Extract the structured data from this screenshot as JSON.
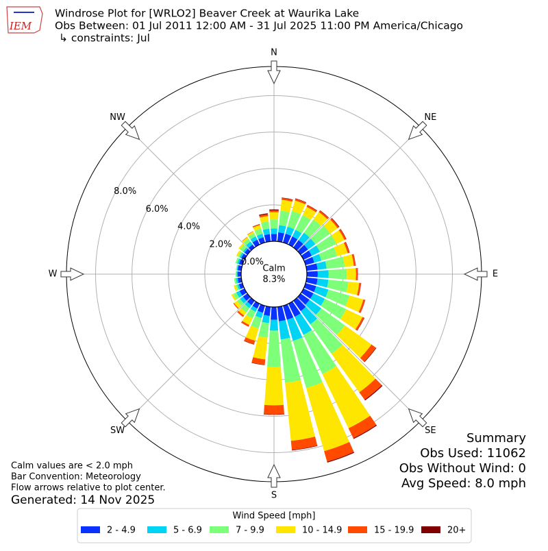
{
  "chart_data": {
    "type": "windrose",
    "title_lines": [
      "Windrose Plot for [WRLO2] Beaver Creek at Waurika Lake",
      "Obs Between: 01 Jul 2011 12:00 AM - 31 Jul 2025 11:00 PM America/Chicago",
      "↳ constraints: Jul"
    ],
    "logo_text": "IEM",
    "x": [
      0,
      10,
      20,
      30,
      40,
      50,
      60,
      70,
      80,
      90,
      100,
      110,
      120,
      130,
      140,
      150,
      160,
      170,
      180,
      190,
      200,
      210,
      220,
      230,
      240,
      250,
      260,
      270,
      280,
      290,
      300,
      310,
      320,
      330,
      340,
      350
    ],
    "series": [
      {
        "name": "2 - 4.9",
        "color": "#0a32ff",
        "values": [
          0.4,
          0.5,
          0.5,
          0.5,
          0.5,
          0.5,
          0.5,
          0.5,
          0.6,
          0.6,
          0.6,
          0.6,
          0.6,
          0.6,
          0.7,
          0.8,
          0.8,
          0.8,
          0.7,
          0.5,
          0.4,
          0.3,
          0.3,
          0.3,
          0.3,
          0.2,
          0.2,
          0.2,
          0.2,
          0.2,
          0.2,
          0.2,
          0.2,
          0.3,
          0.3,
          0.4
        ]
      },
      {
        "name": "5 - 6.9",
        "color": "#00d4f5",
        "values": [
          0.3,
          0.4,
          0.4,
          0.4,
          0.5,
          0.5,
          0.5,
          0.4,
          0.5,
          0.6,
          0.6,
          0.7,
          0.7,
          0.8,
          0.9,
          1.1,
          1.2,
          1.0,
          0.6,
          0.4,
          0.3,
          0.2,
          0.2,
          0.2,
          0.2,
          0.1,
          0.1,
          0.05,
          0.05,
          0.1,
          0.1,
          0.1,
          0.2,
          0.2,
          0.2,
          0.3
        ]
      },
      {
        "name": "7 - 9.9",
        "color": "#7dff7a",
        "values": [
          0.5,
          0.8,
          0.9,
          0.9,
          0.9,
          1.0,
          1.0,
          0.9,
          1.0,
          1.0,
          1.1,
          1.2,
          1.3,
          1.6,
          2.0,
          2.4,
          2.7,
          2.4,
          2.0,
          0.8,
          0.6,
          0.4,
          0.3,
          0.2,
          0.2,
          0.1,
          0.1,
          0.05,
          0.05,
          0.1,
          0.1,
          0.2,
          0.2,
          0.2,
          0.3,
          0.4
        ]
      },
      {
        "name": "10 - 14.9",
        "color": "#ffe600",
        "values": [
          0.4,
          0.6,
          0.6,
          0.5,
          0.5,
          0.5,
          0.5,
          0.6,
          0.5,
          0.5,
          0.6,
          0.8,
          1.0,
          1.8,
          2.6,
          3.3,
          3.6,
          3.2,
          2.1,
          1.2,
          0.7,
          0.4,
          0.2,
          0.2,
          0.1,
          0.1,
          0,
          0,
          0,
          0,
          0.1,
          0.1,
          0.1,
          0.1,
          0.2,
          0.3
        ]
      },
      {
        "name": "15 - 19.9",
        "color": "#ff4a00",
        "values": [
          0.1,
          0.1,
          0.1,
          0.1,
          0.1,
          0.1,
          0.1,
          0.1,
          0.1,
          0.1,
          0.1,
          0.1,
          0.1,
          0.3,
          0.5,
          0.6,
          0.6,
          0.5,
          0.5,
          0.3,
          0.2,
          0.1,
          0.1,
          0.05,
          0,
          0,
          0,
          0,
          0,
          0,
          0,
          0,
          0.02,
          0.02,
          0.05,
          0.1
        ]
      },
      {
        "name": "20+",
        "color": "#800000",
        "values": [
          0.05,
          0.02,
          0.02,
          0.02,
          0.02,
          0.03,
          0.02,
          0.02,
          0.01,
          0.01,
          0.01,
          0.01,
          0.02,
          0.03,
          0.05,
          0.05,
          0.05,
          0.03,
          0.02,
          0.02,
          0.02,
          0.01,
          0,
          0,
          0,
          0,
          0,
          0,
          0,
          0,
          0,
          0,
          0,
          0,
          0.01,
          0.05
        ]
      }
    ],
    "rlim": [
      0,
      9.6
    ],
    "rticks": [
      {
        "value": 0,
        "label": "0.0%"
      },
      {
        "value": 2,
        "label": "2.0%"
      },
      {
        "value": 4,
        "label": "4.0%"
      },
      {
        "value": 6,
        "label": "6.0%"
      },
      {
        "value": 8,
        "label": "8.0%"
      }
    ],
    "compass": [
      {
        "value": 0,
        "label": "N"
      },
      {
        "value": 45,
        "label": "NE"
      },
      {
        "value": 90,
        "label": "E"
      },
      {
        "value": 135,
        "label": "SE"
      },
      {
        "value": 180,
        "label": "S"
      },
      {
        "value": 225,
        "label": "SW"
      },
      {
        "value": 270,
        "label": "W"
      },
      {
        "value": 315,
        "label": "NW"
      }
    ],
    "calm": {
      "label": "Calm",
      "text": "8.3%"
    },
    "summary": [
      "Summary",
      "Obs Used: 11062",
      "Obs Without Wind: 0",
      "Avg Speed: 8.0 mph"
    ],
    "notes": [
      "Calm values are < 2.0 mph",
      "Bar Convention: Meteorology",
      "Flow arrows relative to plot center."
    ],
    "generated": "Generated: 14 Nov 2025",
    "legend_title": "Wind Speed [mph]"
  }
}
